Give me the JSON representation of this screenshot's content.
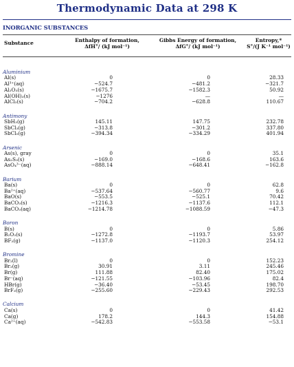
{
  "title": "Thermodynamic Data at 298 K",
  "subtitle": "INORGANIC SUBSTANCES",
  "headers": {
    "substance": "Substance",
    "enthalpy_l1": "Enthalpy of formation,",
    "enthalpy_l2": "ΔfH°/ (kJ mol⁻¹)",
    "gibbs_l1": "Gibbs Energy of formation,",
    "gibbs_l2": "ΔfG°/ (kJ mol⁻¹)",
    "entropy_l1": "Entropy,*",
    "entropy_l2": "S°/(J K⁻¹ mol⁻¹)"
  },
  "groups": [
    {
      "name": "Aluminium",
      "rows": [
        {
          "s": "Al(s)",
          "h": "0",
          "g": "0",
          "e": "28.33"
        },
        {
          "s": "Al³⁺(aq)",
          "h": "−524.7",
          "g": "−481.2",
          "e": "−321.7"
        },
        {
          "s": "Al₂O₃(s)",
          "h": "−1675.7",
          "g": "−1582.3",
          "e": "50.92"
        },
        {
          "s": "Al(OH)₃(s)",
          "h": "−1276",
          "g": "—",
          "e": "—"
        },
        {
          "s": "AlCl₃(s)",
          "h": "−704.2",
          "g": "−628.8",
          "e": "110.67"
        }
      ]
    },
    {
      "name": "Antimony",
      "rows": [
        {
          "s": "SbH₃(g)",
          "h": "145.11",
          "g": "147.75",
          "e": "232.78"
        },
        {
          "s": "SbCl₃(g)",
          "h": "−313.8",
          "g": "−301.2",
          "e": "337.80"
        },
        {
          "s": "SbCl₅(g)",
          "h": "−394.34",
          "g": "−334.29",
          "e": "401.94"
        }
      ]
    },
    {
      "name": "Arsenic",
      "rows": [
        {
          "s": "As(s), gray",
          "h": "0",
          "g": "0",
          "e": "35.1"
        },
        {
          "s": "As₂S₃(s)",
          "h": "−169.0",
          "g": "−168.6",
          "e": "163.6"
        },
        {
          "s": "AsO₄³⁻(aq)",
          "h": "−888.14",
          "g": "−648.41",
          "e": "−162.8"
        }
      ]
    },
    {
      "name": "Barium",
      "rows": [
        {
          "s": "Ba(s)",
          "h": "0",
          "g": "0",
          "e": "62.8"
        },
        {
          "s": "Ba²⁺(aq)",
          "h": "−537.64",
          "g": "−560.77",
          "e": "9.6"
        },
        {
          "s": "BaO(s)",
          "h": "−553.5",
          "g": "−525.1",
          "e": "70.42"
        },
        {
          "s": "BaCO₃(s)",
          "h": "−1216.3",
          "g": "−1137.6",
          "e": "112.1"
        },
        {
          "s": "BaCO₃(aq)",
          "h": "−1214.78",
          "g": "−1088.59",
          "e": "−47.3"
        }
      ]
    },
    {
      "name": "Boron",
      "rows": [
        {
          "s": "B(s)",
          "h": "0",
          "g": "0",
          "e": "5.86"
        },
        {
          "s": "B₂O₃(s)",
          "h": "−1272.8",
          "g": "−1193.7",
          "e": "53.97"
        },
        {
          "s": "BF₃(g)",
          "h": "−1137.0",
          "g": "−1120.3",
          "e": "254.12"
        }
      ]
    },
    {
      "name": "Bromine",
      "rows": [
        {
          "s": "Br₂(l)",
          "h": "0",
          "g": "0",
          "e": "152.23"
        },
        {
          "s": "Br₂(g)",
          "h": "30.91",
          "g": "3.11",
          "e": "245.46"
        },
        {
          "s": "Br(g)",
          "h": "111.88",
          "g": "82.40",
          "e": "175.02"
        },
        {
          "s": "Br⁻(aq)",
          "h": "−121.55",
          "g": "−103.96",
          "e": "82.4"
        },
        {
          "s": "HBr(g)",
          "h": "−36.40",
          "g": "−53.45",
          "e": "198.70"
        },
        {
          "s": "BrF₃(g)",
          "h": "−255.60",
          "g": "−229.43",
          "e": "292.53"
        }
      ]
    },
    {
      "name": "Calcium",
      "rows": [
        {
          "s": "Ca(s)",
          "h": "0",
          "g": "0",
          "e": "41.42"
        },
        {
          "s": "Ca(g)",
          "h": "178.2",
          "g": "144.3",
          "e": "154.88"
        },
        {
          "s": "Ca²⁺(aq)",
          "h": "−542.83",
          "g": "−553.58",
          "e": "−53.1"
        }
      ]
    }
  ]
}
